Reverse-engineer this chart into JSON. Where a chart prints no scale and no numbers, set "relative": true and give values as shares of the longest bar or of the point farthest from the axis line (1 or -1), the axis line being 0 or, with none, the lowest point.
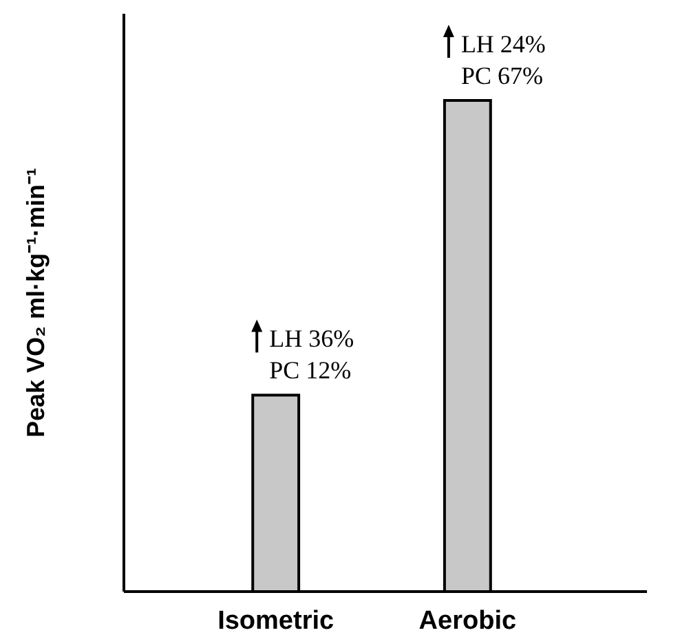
{
  "chart_data": {
    "type": "bar",
    "relative": true,
    "ylabel": "Peak VO₂ ml·kg⁻¹·min⁻¹",
    "categories": [
      "Isometric",
      "Aerobic"
    ],
    "values": [
      0.4,
      1
    ],
    "color": "#c8c8c8",
    "annotations": [
      {
        "text": "LH 36%",
        "x": "Isometric",
        "y": 0.4
      },
      {
        "text": "PC 12%",
        "x": "Isometric",
        "y": 0.4
      },
      {
        "text": "LH 24%",
        "x": "Aerobic",
        "y": 1
      },
      {
        "text": "PC 67%",
        "x": "Aerobic",
        "y": 1
      }
    ]
  }
}
